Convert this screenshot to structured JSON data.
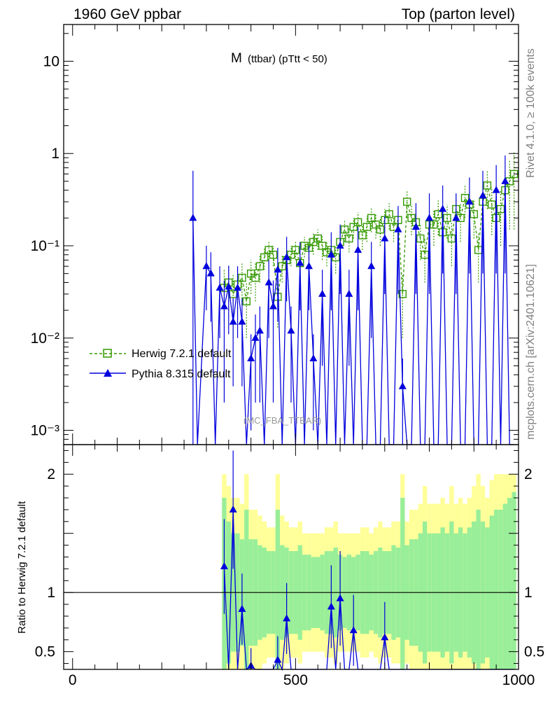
{
  "header": {
    "left": "1960 GeV ppbar",
    "right": "Top (parton level)"
  },
  "side": {
    "rivet": "Rivet 4.1.0, ≥ 100k events",
    "mcplots": "mcplots.cern.ch [arXiv:2401.10621]"
  },
  "plot": {
    "title_main": "M",
    "title_sub": "(ttbar) (pTtt < 50)",
    "analysis": "(MC_FBA_TTBAR)",
    "ratio_ylabel": "Ratio to Herwig 7.2.1 default"
  },
  "colors": {
    "herwig": "#339900",
    "pythia": "#0000dd",
    "band_inner": "#99ee99",
    "band_outer": "#ffff99"
  },
  "chart_data": {
    "type": "scatter",
    "x_label": "",
    "xlim": [
      -20,
      1000
    ],
    "x_ticks": [
      0,
      500,
      1000
    ],
    "x_tick_labels": [
      "0",
      "500",
      "1000"
    ],
    "main": {
      "yscale": "log",
      "ylim": [
        0.0007,
        25
      ],
      "y_ticks": [
        0.001,
        0.01,
        0.1,
        1,
        10
      ],
      "y_tick_labels": [
        "10⁻³",
        "10⁻²",
        "10⁻¹",
        "1",
        "10"
      ]
    },
    "ratio": {
      "ylim": [
        0.35,
        2.25
      ],
      "y_ticks": [
        0.5,
        1,
        2
      ],
      "y_tick_labels": [
        "0.5",
        "1",
        "2"
      ],
      "reference_line": 1
    },
    "series": [
      {
        "name": "Herwig 7.2.1 default",
        "marker": "open-square",
        "line": "dashed",
        "x": [
          340,
          350,
          360,
          370,
          380,
          390,
          400,
          410,
          420,
          430,
          440,
          450,
          460,
          470,
          480,
          490,
          500,
          510,
          520,
          530,
          540,
          550,
          560,
          570,
          580,
          590,
          600,
          610,
          620,
          630,
          640,
          650,
          660,
          670,
          680,
          690,
          700,
          710,
          720,
          730,
          740,
          750,
          760,
          770,
          780,
          790,
          800,
          810,
          820,
          830,
          840,
          850,
          860,
          870,
          880,
          890,
          900,
          910,
          920,
          930,
          940,
          950,
          960,
          970,
          980,
          990
        ],
        "y": [
          0.035,
          0.04,
          0.03,
          0.038,
          0.045,
          0.025,
          0.05,
          0.045,
          0.06,
          0.075,
          0.09,
          0.08,
          0.028,
          0.06,
          0.07,
          0.08,
          0.09,
          0.065,
          0.1,
          0.095,
          0.11,
          0.12,
          0.1,
          0.085,
          0.09,
          0.075,
          0.11,
          0.15,
          0.12,
          0.16,
          0.18,
          0.13,
          0.16,
          0.2,
          0.17,
          0.15,
          0.19,
          0.22,
          0.16,
          0.19,
          0.03,
          0.3,
          0.2,
          0.18,
          0.12,
          0.08,
          0.17,
          0.17,
          0.22,
          0.14,
          0.2,
          0.12,
          0.25,
          0.2,
          0.33,
          0.28,
          0.22,
          0.09,
          0.3,
          0.45,
          0.28,
          0.2,
          0.25,
          0.4,
          0.5,
          0.6
        ],
        "y_err": [
          0.02,
          0.02,
          0.02,
          0.02,
          0.02,
          0.015,
          0.02,
          0.02,
          0.02,
          0.02,
          0.02,
          0.02,
          0.015,
          0.02,
          0.02,
          0.02,
          0.02,
          0.02,
          0.025,
          0.025,
          0.03,
          0.03,
          0.03,
          0.025,
          0.03,
          0.025,
          0.03,
          0.04,
          0.035,
          0.04,
          0.05,
          0.04,
          0.05,
          0.06,
          0.05,
          0.05,
          0.06,
          0.07,
          0.05,
          0.06,
          0.02,
          0.1,
          0.07,
          0.07,
          0.05,
          0.04,
          0.07,
          0.07,
          0.09,
          0.06,
          0.08,
          0.06,
          0.1,
          0.09,
          0.13,
          0.12,
          0.1,
          0.05,
          0.15,
          0.2,
          0.15,
          0.12,
          0.15,
          0.25,
          0.35,
          0.45
        ]
      },
      {
        "name": "Pythia 8.315 default",
        "marker": "filled-triangle",
        "line": "solid",
        "x": [
          270,
          280,
          300,
          310,
          320,
          330,
          340,
          350,
          360,
          370,
          380,
          390,
          400,
          410,
          420,
          430,
          440,
          450,
          460,
          470,
          480,
          490,
          500,
          510,
          520,
          530,
          540,
          550,
          560,
          570,
          580,
          590,
          600,
          610,
          620,
          630,
          640,
          650,
          660,
          670,
          680,
          690,
          700,
          710,
          720,
          730,
          740,
          750,
          760,
          770,
          780,
          790,
          800,
          810,
          820,
          830,
          840,
          850,
          860,
          870,
          880,
          890,
          900,
          910,
          920,
          930,
          940,
          950,
          960,
          970,
          980,
          990
        ],
        "y": [
          0.2,
          0.0001,
          0.06,
          0.05,
          0.0001,
          0.035,
          0.022,
          0.036,
          0.015,
          0.035,
          0.015,
          0.0001,
          0.006,
          0.01,
          0.012,
          0.0001,
          0.04,
          0.022,
          0.055,
          0.0001,
          0.075,
          0.012,
          0.0001,
          0.065,
          0.0001,
          0.06,
          0.006,
          0.0001,
          0.03,
          0.0001,
          0.08,
          0.0001,
          0.1,
          0.0001,
          0.03,
          0.0001,
          0.09,
          0.0001,
          0.0001,
          0.06,
          0.0001,
          0.0001,
          0.12,
          0.0001,
          0.0001,
          0.15,
          0.003,
          0.0001,
          0.0001,
          0.16,
          0.0001,
          0.0001,
          0.2,
          0.0001,
          0.0001,
          0.25,
          0.0001,
          0.0001,
          0.2,
          0.0001,
          0.0001,
          0.3,
          0.0001,
          0.0001,
          0.35,
          0.0001,
          0.0001,
          0.4,
          0.0001,
          0.5,
          0.0001,
          0.0001
        ],
        "y_err": [
          0.45,
          0,
          0.04,
          0.035,
          0,
          0.025,
          0.02,
          0.025,
          0.012,
          0.025,
          0.012,
          0,
          0.005,
          0.008,
          0.01,
          0,
          0.03,
          0.02,
          0.04,
          0,
          0.05,
          0.01,
          0,
          0.045,
          0,
          0.04,
          0.005,
          0,
          0.025,
          0,
          0.06,
          0,
          0.07,
          0,
          0.025,
          0,
          0.07,
          0,
          0,
          0.05,
          0,
          0,
          0.09,
          0,
          0,
          0.12,
          0.003,
          0,
          0,
          0.13,
          0,
          0,
          0.17,
          0,
          0,
          0.2,
          0,
          0,
          0.17,
          0,
          0,
          0.25,
          0,
          0,
          0.3,
          0,
          0,
          0.35,
          0,
          0.45,
          0,
          0
        ]
      }
    ],
    "ratio_band": {
      "x": [
        340,
        350,
        360,
        370,
        380,
        390,
        400,
        410,
        420,
        430,
        440,
        450,
        460,
        470,
        480,
        490,
        500,
        510,
        520,
        530,
        540,
        550,
        560,
        570,
        580,
        590,
        600,
        610,
        620,
        630,
        640,
        650,
        660,
        670,
        680,
        690,
        700,
        710,
        720,
        730,
        740,
        750,
        760,
        770,
        780,
        790,
        800,
        810,
        820,
        830,
        840,
        850,
        860,
        870,
        880,
        890,
        900,
        910,
        920,
        930,
        940,
        950,
        960,
        970,
        980,
        990
      ],
      "inner": [
        0.8,
        0.6,
        0.5,
        0.5,
        0.45,
        0.7,
        0.45,
        0.45,
        0.4,
        0.38,
        0.35,
        0.35,
        0.7,
        0.4,
        0.38,
        0.35,
        0.35,
        0.4,
        0.32,
        0.32,
        0.3,
        0.3,
        0.32,
        0.35,
        0.35,
        0.38,
        0.32,
        0.3,
        0.32,
        0.3,
        0.32,
        0.35,
        0.35,
        0.32,
        0.35,
        0.38,
        0.35,
        0.35,
        0.4,
        0.38,
        0.8,
        0.4,
        0.45,
        0.45,
        0.5,
        0.6,
        0.5,
        0.5,
        0.5,
        0.55,
        0.5,
        0.6,
        0.5,
        0.55,
        0.5,
        0.55,
        0.6,
        0.7,
        0.6,
        0.55,
        0.65,
        0.7,
        0.7,
        0.75,
        0.8,
        0.85
      ],
      "outer": [
        1.0,
        0.9,
        0.8,
        0.8,
        0.75,
        1.0,
        0.7,
        0.7,
        0.65,
        0.6,
        0.55,
        0.55,
        1.0,
        0.65,
        0.6,
        0.55,
        0.55,
        0.6,
        0.5,
        0.5,
        0.5,
        0.5,
        0.5,
        0.55,
        0.55,
        0.6,
        0.5,
        0.5,
        0.5,
        0.5,
        0.5,
        0.55,
        0.55,
        0.5,
        0.55,
        0.6,
        0.55,
        0.55,
        0.6,
        0.6,
        1.0,
        0.6,
        0.7,
        0.7,
        0.75,
        0.9,
        0.75,
        0.75,
        0.75,
        0.8,
        0.75,
        0.9,
        0.75,
        0.8,
        0.75,
        0.8,
        0.9,
        1.0,
        0.9,
        0.8,
        0.95,
        1.0,
        1.0,
        1.0,
        1.0,
        1.0
      ]
    },
    "ratio_pythia": {
      "x": [
        340,
        350,
        360,
        370,
        380,
        390,
        400,
        410,
        420,
        430,
        440,
        450,
        460,
        470,
        480,
        490,
        500,
        510,
        520,
        530,
        540,
        550,
        560,
        570,
        580,
        590,
        600,
        610,
        620,
        630,
        640,
        650,
        660,
        670,
        680,
        690,
        700,
        710,
        720,
        730,
        740,
        750,
        760,
        770,
        780,
        790,
        800,
        810,
        820,
        830,
        840,
        850,
        860,
        870,
        880,
        890,
        900,
        910,
        920,
        930,
        940,
        950,
        960,
        970,
        980,
        990
      ],
      "y": [
        1.22,
        0.3,
        1.7,
        0.3,
        0.86,
        0.3,
        0.38,
        0.3,
        0.3,
        0.3,
        0.3,
        0.3,
        0.43,
        0.3,
        0.78,
        0.3,
        0.3,
        0.3,
        0.3,
        0.3,
        0.3,
        0.3,
        0.3,
        0.3,
        0.88,
        0.3,
        0.95,
        0.3,
        0.3,
        0.68,
        0.3,
        0.3,
        0.3,
        0.3,
        0.3,
        0.3,
        0.62,
        0.3,
        0.3,
        0.3,
        0.3,
        0.3,
        0.3,
        0.3,
        0.3,
        0.3,
        0.3,
        0.3,
        0.3,
        0.3,
        0.3,
        0.3,
        0.3,
        0.3,
        0.3,
        0.3,
        0.3,
        0.3,
        0.3,
        0.3,
        0.3,
        0.3,
        0.3,
        0.3,
        0.3,
        0.3
      ],
      "y_err": [
        0.4,
        0,
        0.5,
        0,
        0.3,
        0,
        0.15,
        0,
        0,
        0,
        0,
        0,
        0.2,
        0,
        0.3,
        0,
        0,
        0,
        0,
        0,
        0,
        0,
        0,
        0,
        0.35,
        0,
        0.4,
        0,
        0,
        0.3,
        0,
        0,
        0,
        0,
        0,
        0,
        0.3,
        0,
        0,
        0,
        0,
        0,
        0,
        0,
        0,
        0,
        0,
        0,
        0,
        0,
        0,
        0,
        0,
        0,
        0,
        0,
        0,
        0,
        0,
        0,
        0,
        0,
        0,
        0,
        0,
        0
      ]
    }
  },
  "legend": {
    "entries": [
      "Herwig 7.2.1 default",
      "Pythia 8.315 default"
    ]
  }
}
